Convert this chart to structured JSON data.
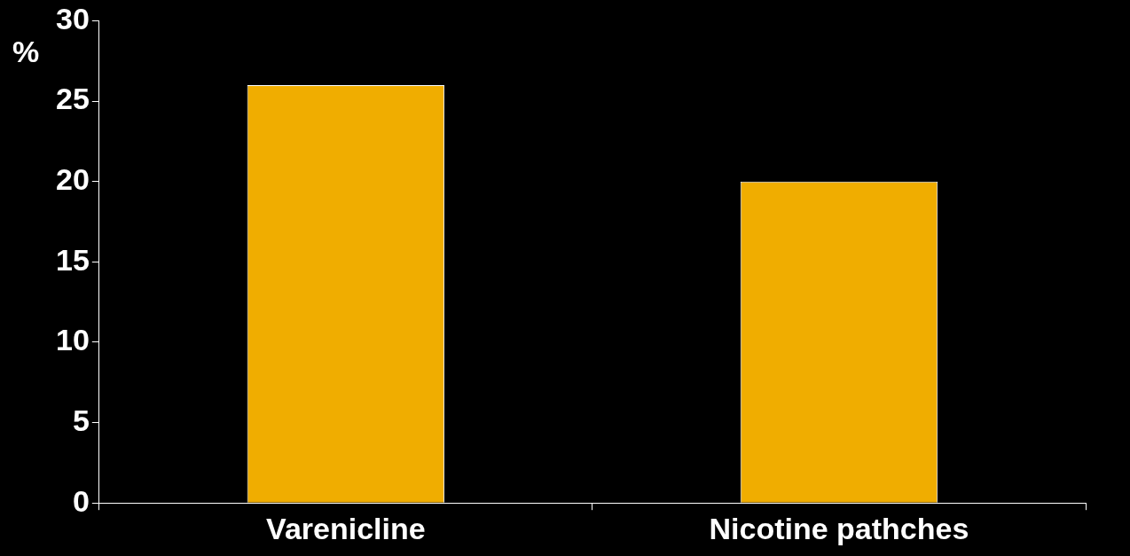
{
  "chart_data": {
    "type": "bar",
    "ylabel": "%",
    "categories": [
      "Varenicline",
      "Nicotine pathches"
    ],
    "values": [
      26,
      20
    ],
    "color": "#f0ad00",
    "ylim": [
      0,
      30
    ],
    "yticks": [
      0,
      5,
      10,
      15,
      20,
      25,
      30
    ],
    "grid": false,
    "legend": false
  }
}
